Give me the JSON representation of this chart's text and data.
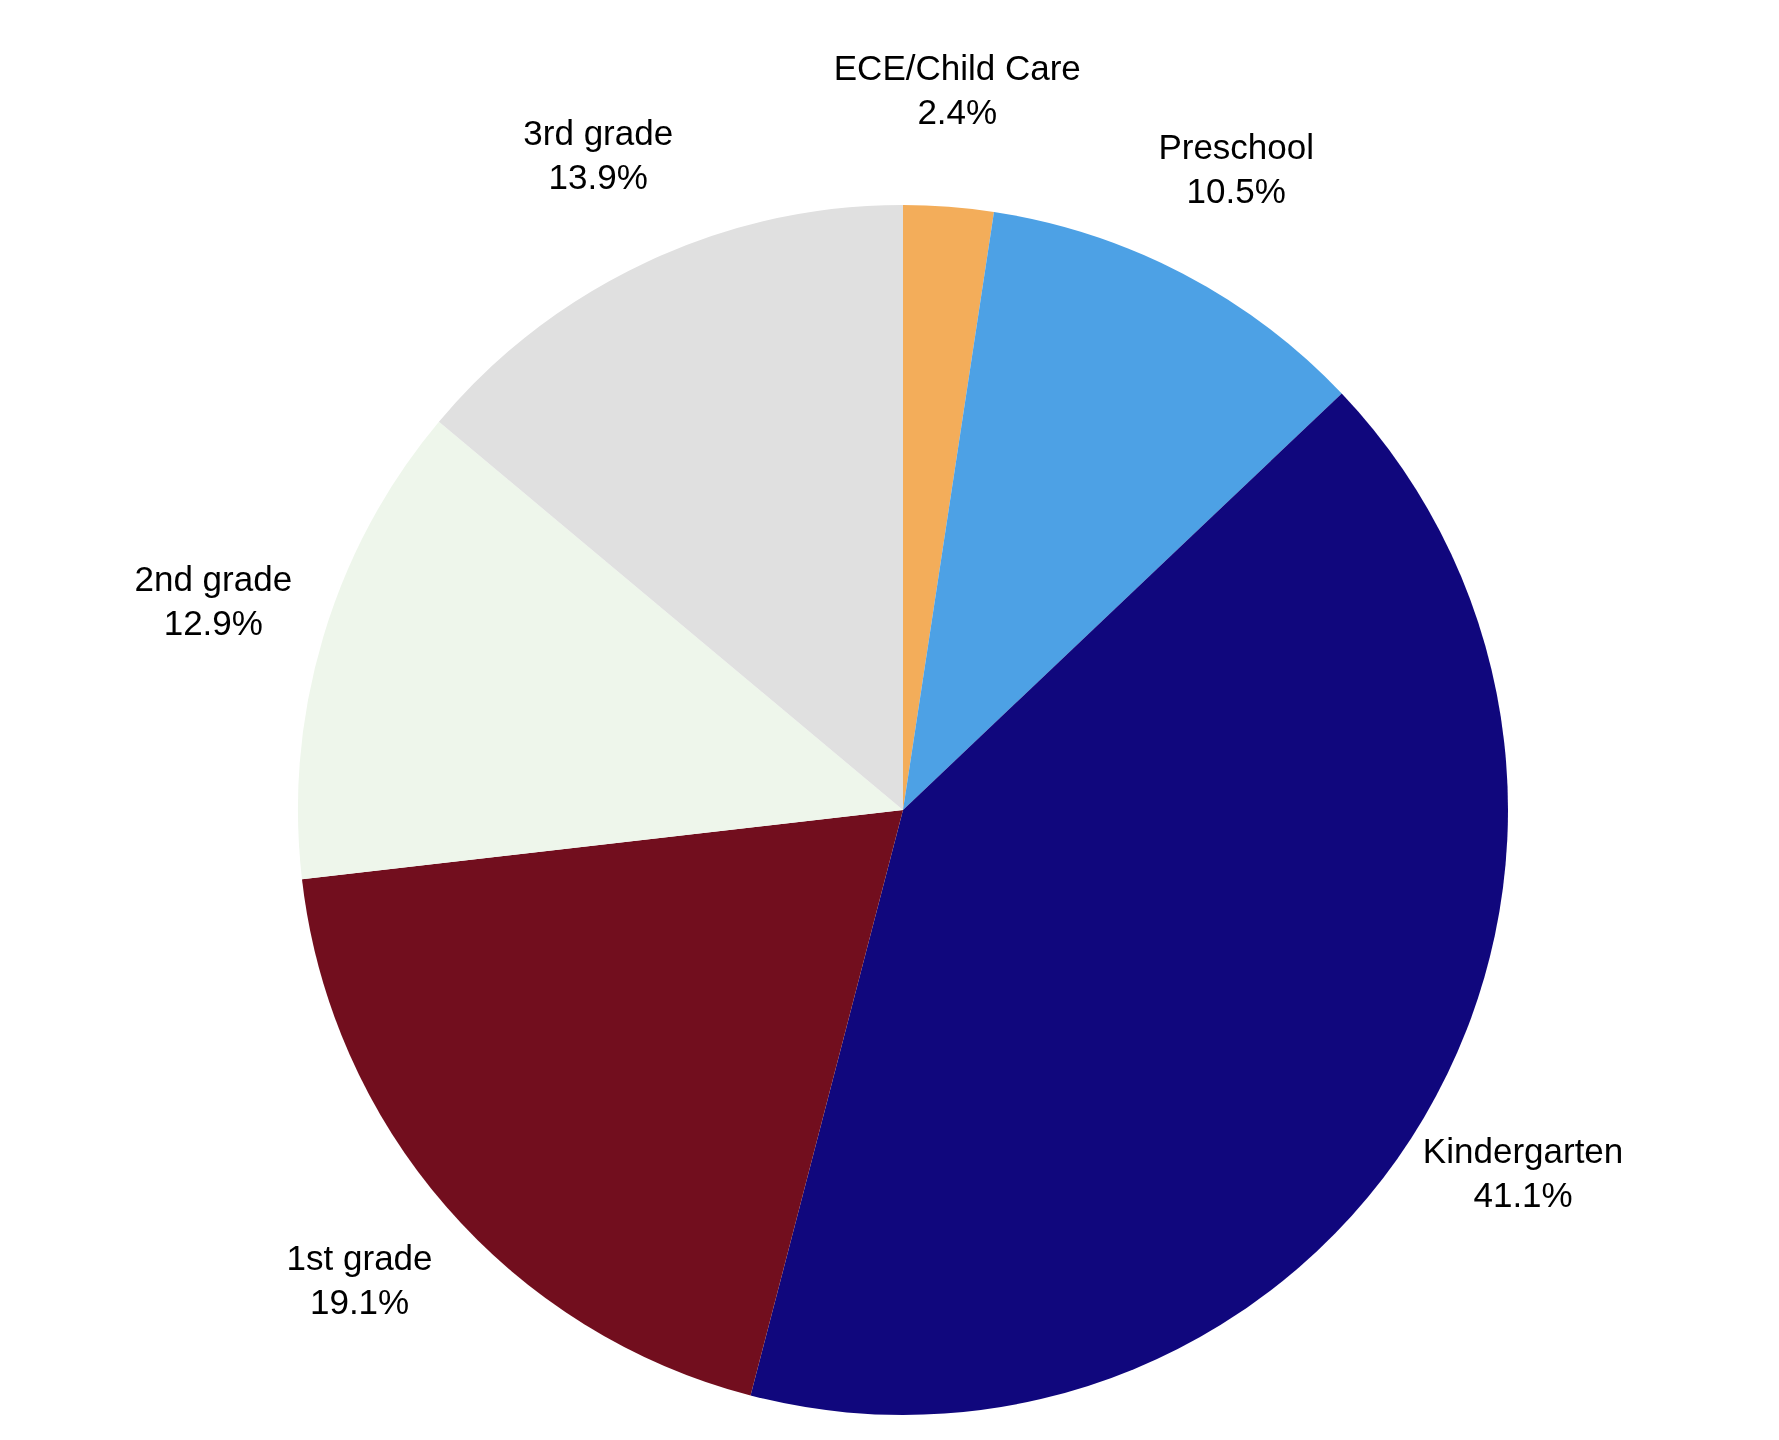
{
  "chart_data": {
    "type": "pie",
    "categories": [
      "ECE/Child Care",
      "Preschool",
      "Kindergarten",
      "1st grade",
      "2nd grade",
      "3rd grade"
    ],
    "values": [
      2.4,
      10.5,
      41.1,
      19.1,
      12.9,
      13.9
    ],
    "value_labels": [
      "2.4%",
      "10.5%",
      "41.1%",
      "19.1%",
      "12.9%",
      "13.9%"
    ],
    "colors": [
      "#f3ad5a",
      "#4da1e5",
      "#10077d",
      "#720e1e",
      "#eef6eb",
      "#e0e0e0"
    ],
    "legend": false
  }
}
